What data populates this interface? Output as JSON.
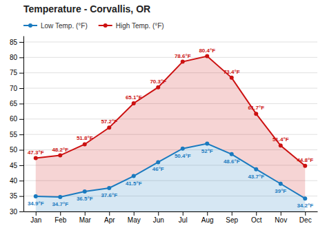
{
  "chart_data": {
    "type": "line",
    "title": "Temperature - Corvallis, OR",
    "categories": [
      "Jan",
      "Feb",
      "Mar",
      "Apr",
      "May",
      "Jun",
      "Jul",
      "Aug",
      "Sep",
      "Oct",
      "Nov",
      "Dec"
    ],
    "series": [
      {
        "name": "Low Temp. (°F)",
        "color": "#1a7abf",
        "values": [
          34.9,
          34.7,
          36.5,
          37.6,
          41.5,
          46.0,
          50.4,
          52.0,
          48.6,
          43.7,
          39.0,
          34.2
        ],
        "value_labels": [
          "34.9°F",
          "34.7°F",
          "36.5°F",
          "37.6°F",
          "41.5°F",
          "46°F",
          "50.4°F",
          "52°F",
          "48.6°F",
          "43.7°F",
          "39°F",
          "34.2°F"
        ]
      },
      {
        "name": "High Temp. (°F)",
        "color": "#cc1111",
        "values": [
          47.3,
          48.2,
          51.8,
          57.2,
          65.1,
          70.3,
          78.6,
          80.4,
          73.4,
          61.7,
          51.4,
          44.8
        ],
        "value_labels": [
          "47.3°F",
          "48.2°F",
          "51.8°F",
          "57.2°F",
          "65.1°F",
          "70.3°F",
          "78.6°F",
          "80.4°F",
          "73.4°F",
          "61.7°F",
          "51.4°F",
          "44.8°F"
        ]
      }
    ],
    "ylim": [
      30,
      87
    ],
    "yticks": [
      30,
      35,
      40,
      45,
      50,
      55,
      60,
      65,
      70,
      75,
      80,
      85
    ],
    "grid": true,
    "legend": "upper left",
    "data_labels": true,
    "marker": "circle"
  }
}
